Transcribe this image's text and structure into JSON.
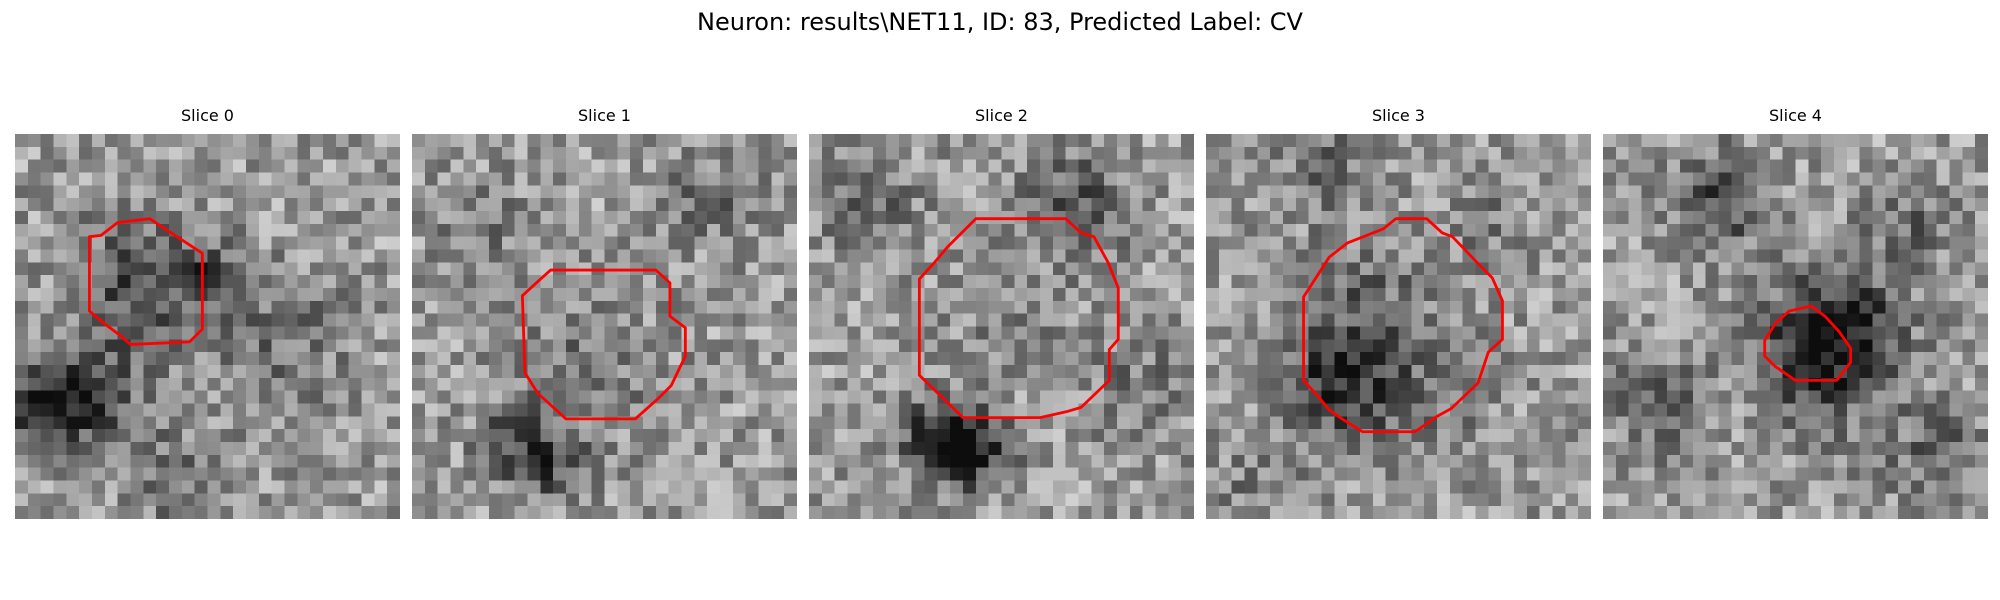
{
  "figure": {
    "title": "Neuron: results\\NET11, ID: 83, Predicted Label: CV",
    "contour_color": "#ff0000"
  },
  "slices": [
    {
      "label": "Slice 0"
    },
    {
      "label": "Slice 1"
    },
    {
      "label": "Slice 2"
    },
    {
      "label": "Slice 3"
    },
    {
      "label": "Slice 4"
    }
  ]
}
